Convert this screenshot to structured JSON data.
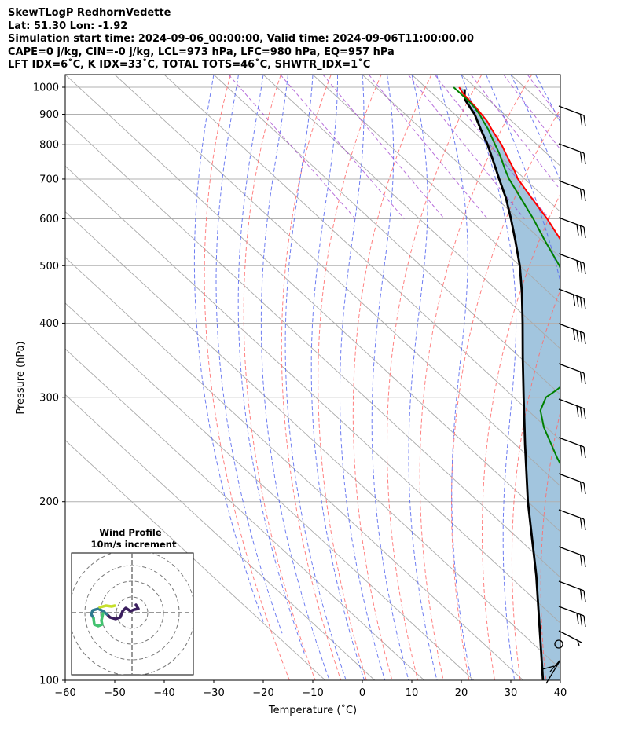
{
  "header": {
    "line1": "SkewTLogP RedhornVedette",
    "line2": "Lat: 51.30   Lon: -1.92",
    "line3": "Simulation start time: 2024-09-06_00:00:00, Valid time: 2024-09-06T11:00:00.00",
    "line4": "CAPE=0 j/kg, CIN=-0 j/kg, LCL=973 hPa, LFC=980 hPa, EQ=957 hPa",
    "line5": "LFT IDX=6˚C, K IDX=33˚C, TOTAL TOTS=46˚C, SHWTR_IDX=1˚C"
  },
  "chart_data": {
    "type": "line",
    "subtype": "skew-t log-p",
    "xlabel": "Temperature (˚C)",
    "ylabel": "Pressure (hPa)",
    "xlim": [
      -60,
      40
    ],
    "ylim": [
      1050,
      100
    ],
    "y_scale": "log",
    "grid": true,
    "x_ticks": [
      -60,
      -50,
      -40,
      -30,
      -20,
      -10,
      0,
      10,
      20,
      30,
      40
    ],
    "y_ticks": [
      1000,
      900,
      800,
      700,
      600,
      500,
      400,
      300,
      200,
      100
    ],
    "colors": {
      "temperature": "#ff0000",
      "dewpoint": "#008000",
      "parcel": "#000000",
      "shade": "#a2c5de",
      "dry_adiabat": "#ff6b6b",
      "moist_adiabat": "#5566ee",
      "mixing_ratio": "#9a33cc",
      "isotherm": "#aaaaaa"
    },
    "series": [
      {
        "key": "temperature",
        "points": [
          [
            16.8,
            1000
          ],
          [
            16.2,
            975
          ],
          [
            16.0,
            950
          ],
          [
            15.8,
            925
          ],
          [
            15.4,
            900
          ],
          [
            15.0,
            875
          ],
          [
            14.2,
            850
          ],
          [
            13.5,
            825
          ],
          [
            12.8,
            800
          ],
          [
            11.8,
            775
          ],
          [
            10.8,
            750
          ],
          [
            9.8,
            725
          ],
          [
            8.6,
            700
          ],
          [
            7.2,
            650
          ],
          [
            5.8,
            600
          ],
          [
            3.8,
            550
          ],
          [
            1.0,
            500
          ],
          [
            -2.0,
            450
          ],
          [
            -6.0,
            400
          ],
          [
            -10.5,
            350
          ],
          [
            -15.0,
            325
          ],
          [
            -20.5,
            300
          ],
          [
            -26.5,
            275
          ],
          [
            -32.0,
            250
          ],
          [
            -35.5,
            237
          ],
          [
            -40.5,
            225
          ],
          [
            -44.0,
            212
          ],
          [
            -46.5,
            200
          ],
          [
            -50.5,
            185
          ],
          [
            -54.0,
            170
          ],
          [
            -57.0,
            160
          ],
          [
            -60.0,
            150
          ],
          [
            -61.5,
            140
          ],
          [
            -63.5,
            130
          ],
          [
            -65.5,
            120
          ],
          [
            -67.5,
            110
          ],
          [
            -69.0,
            100
          ]
        ]
      },
      {
        "key": "dewpoint",
        "points": [
          [
            15.7,
            1000
          ],
          [
            15.7,
            975
          ],
          [
            15.7,
            950
          ],
          [
            15.5,
            925
          ],
          [
            15.0,
            900
          ],
          [
            14.2,
            875
          ],
          [
            13.5,
            850
          ],
          [
            12.5,
            825
          ],
          [
            11.5,
            800
          ],
          [
            10.5,
            775
          ],
          [
            9.3,
            750
          ],
          [
            8.0,
            725
          ],
          [
            6.8,
            700
          ],
          [
            5.0,
            650
          ],
          [
            3.0,
            600
          ],
          [
            0.5,
            550
          ],
          [
            -2.0,
            500
          ],
          [
            -5.8,
            450
          ],
          [
            -10.0,
            400
          ],
          [
            -15.5,
            350
          ],
          [
            -23.5,
            325
          ],
          [
            -30.0,
            308
          ],
          [
            -33.5,
            300
          ],
          [
            -37.5,
            285
          ],
          [
            -40.5,
            267
          ],
          [
            -44.5,
            237
          ],
          [
            -48.0,
            210
          ],
          [
            -52.0,
            195
          ],
          [
            -56.0,
            178
          ],
          [
            -60.0,
            163
          ],
          [
            -64.0,
            151
          ],
          [
            -67.0,
            141
          ],
          [
            -67.5,
            133
          ],
          [
            -67.5,
            125
          ],
          [
            -67.0,
            115
          ],
          [
            -66.0,
            100
          ]
        ]
      },
      {
        "key": "parcel",
        "points": [
          [
            17.5,
            992
          ],
          [
            16.2,
            970
          ],
          [
            15.2,
            950
          ],
          [
            14.0,
            900
          ],
          [
            12.0,
            850
          ],
          [
            10.0,
            800
          ],
          [
            7.5,
            750
          ],
          [
            4.8,
            700
          ],
          [
            2.0,
            650
          ],
          [
            -1.5,
            600
          ],
          [
            -5.5,
            550
          ],
          [
            -10.0,
            500
          ],
          [
            -15.5,
            450
          ],
          [
            -22.0,
            400
          ],
          [
            -29.5,
            350
          ],
          [
            -38.0,
            300
          ],
          [
            -48.0,
            250
          ],
          [
            -60.0,
            200
          ],
          [
            -74.5,
            150
          ],
          [
            -96.0,
            100
          ]
        ]
      }
    ],
    "wind_profile": {
      "title": "Wind Profile",
      "subtitle": "10m/s increment"
    }
  }
}
